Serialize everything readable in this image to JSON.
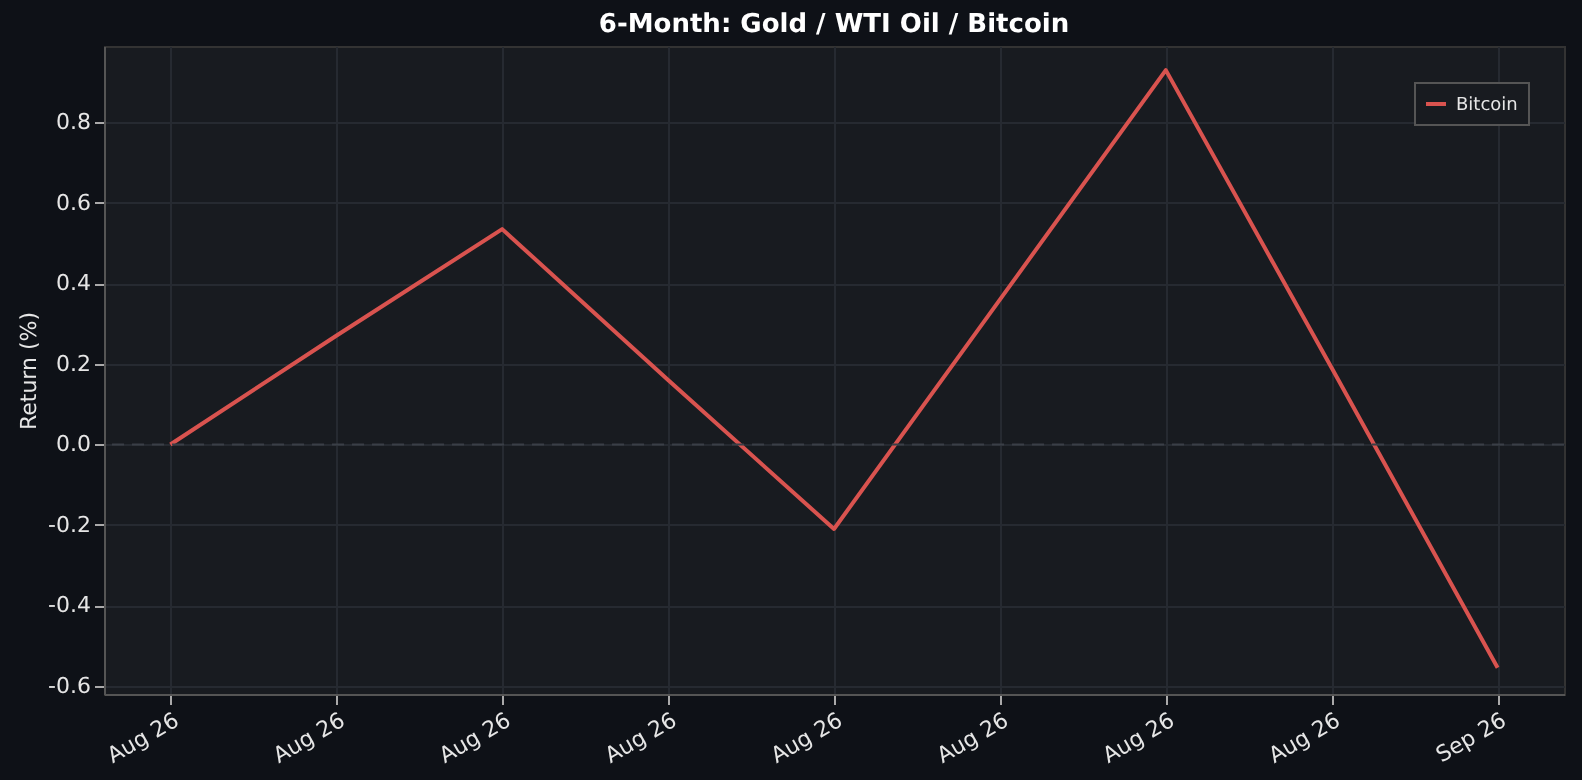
{
  "chart_data": {
    "type": "line",
    "title": "6-Month: Gold / WTI Oil / Bitcoin",
    "ylabel": "Return (%)",
    "categories": [
      "Aug 26",
      "Aug 26",
      "Aug 26",
      "Aug 26",
      "Aug 26",
      "Aug 26",
      "Aug 26",
      "Aug 26",
      "Sep 26"
    ],
    "series": [
      {
        "name": "Bitcoin",
        "color": "#d9534f",
        "values": [
          0.0,
          0.27,
          0.535,
          0.16,
          -0.21,
          0.36,
          0.93,
          0.19,
          -0.555
        ]
      }
    ],
    "ylim": [
      -0.62,
      0.99
    ],
    "yticks": [
      -0.6,
      -0.4,
      -0.2,
      {
        "value": 0,
        "label": "0.0"
      },
      0.2,
      0.4,
      0.6,
      0.8
    ],
    "ref_lines": [
      {
        "axis": "y",
        "value": 0,
        "color": "#3a3f47",
        "line_style": "dashed"
      }
    ],
    "grid": true,
    "legend": "top right",
    "marker": "none",
    "line_style": "solid"
  }
}
